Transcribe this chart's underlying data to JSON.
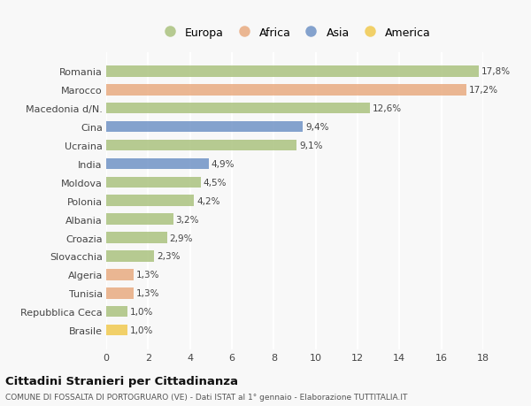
{
  "categories": [
    "Romania",
    "Marocco",
    "Macedonia d/N.",
    "Cina",
    "Ucraina",
    "India",
    "Moldova",
    "Polonia",
    "Albania",
    "Croazia",
    "Slovacchia",
    "Algeria",
    "Tunisia",
    "Repubblica Ceca",
    "Brasile"
  ],
  "values": [
    17.8,
    17.2,
    12.6,
    9.4,
    9.1,
    4.9,
    4.5,
    4.2,
    3.2,
    2.9,
    2.3,
    1.3,
    1.3,
    1.0,
    1.0
  ],
  "labels": [
    "17,8%",
    "17,2%",
    "12,6%",
    "9,4%",
    "9,1%",
    "4,9%",
    "4,5%",
    "4,2%",
    "3,2%",
    "2,9%",
    "2,3%",
    "1,3%",
    "1,3%",
    "1,0%",
    "1,0%"
  ],
  "continents": [
    "Europa",
    "Africa",
    "Europa",
    "Asia",
    "Europa",
    "Asia",
    "Europa",
    "Europa",
    "Europa",
    "Europa",
    "Europa",
    "Africa",
    "Africa",
    "Europa",
    "America"
  ],
  "colors": {
    "Europa": "#a8c07a",
    "Africa": "#e8a87c",
    "Asia": "#6b8fc4",
    "America": "#f0c84a"
  },
  "legend_order": [
    "Europa",
    "Africa",
    "Asia",
    "America"
  ],
  "title": "Cittadini Stranieri per Cittadinanza",
  "subtitle": "COMUNE DI FOSSALTA DI PORTOGRUARO (VE) - Dati ISTAT al 1° gennaio - Elaborazione TUTTITALIA.IT",
  "xlim": [
    0,
    18
  ],
  "xticks": [
    0,
    2,
    4,
    6,
    8,
    10,
    12,
    14,
    16,
    18
  ],
  "background_color": "#f8f8f8",
  "grid_color": "#ffffff",
  "bar_height": 0.6
}
